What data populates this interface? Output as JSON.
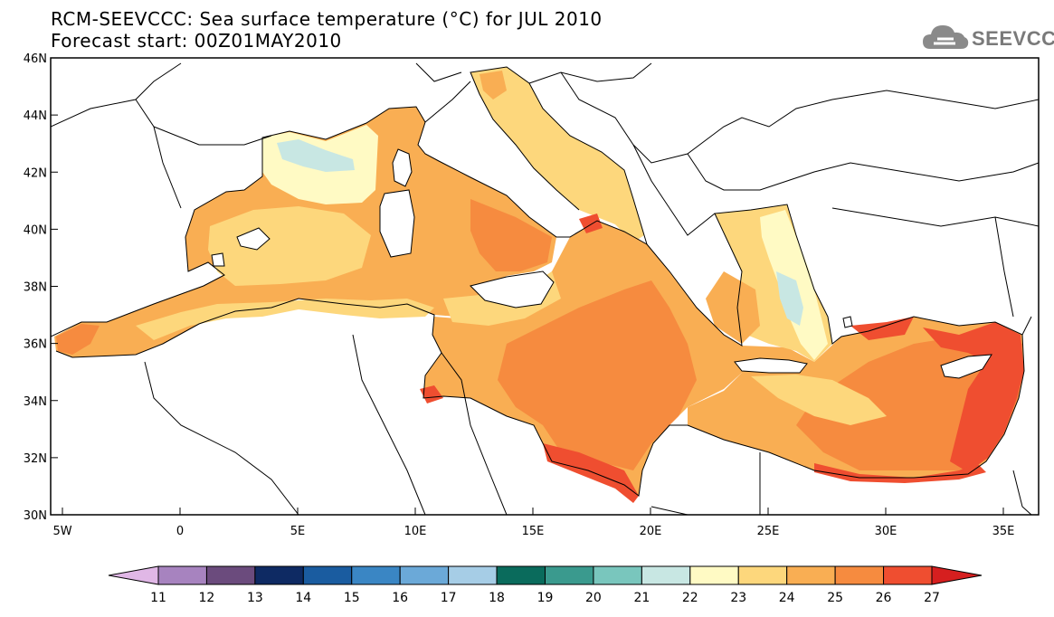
{
  "title_line1": "RCM-SEEVCCC: Sea surface temperature (°C) for JUL 2010",
  "title_line2": "Forecast start: 00Z01MAY2010",
  "logo_text": "SEEVCCC",
  "logo_icon": "cloud-icon",
  "map": {
    "lon_range": [
      -5.5,
      36.5
    ],
    "lat_range": [
      30,
      46
    ],
    "lat_ticks": [
      {
        "v": 46,
        "label": "46N"
      },
      {
        "v": 44,
        "label": "44N"
      },
      {
        "v": 42,
        "label": "42N"
      },
      {
        "v": 40,
        "label": "40N"
      },
      {
        "v": 38,
        "label": "38N"
      },
      {
        "v": 36,
        "label": "36N"
      },
      {
        "v": 34,
        "label": "34N"
      },
      {
        "v": 32,
        "label": "32N"
      },
      {
        "v": 30,
        "label": "30N"
      }
    ],
    "lon_ticks": [
      {
        "v": -5,
        "label": "5W"
      },
      {
        "v": 0,
        "label": "0"
      },
      {
        "v": 5,
        "label": "5E"
      },
      {
        "v": 10,
        "label": "10E"
      },
      {
        "v": 15,
        "label": "15E"
      },
      {
        "v": 20,
        "label": "20E"
      },
      {
        "v": 25,
        "label": "25E"
      },
      {
        "v": 30,
        "label": "30E"
      },
      {
        "v": 35,
        "label": "35E"
      }
    ]
  },
  "colorbar": {
    "levels": [
      "11",
      "12",
      "13",
      "14",
      "15",
      "16",
      "17",
      "18",
      "19",
      "20",
      "21",
      "22",
      "23",
      "24",
      "25",
      "26",
      "27"
    ],
    "colors": [
      "#e0b7e6",
      "#a783bf",
      "#6b4b7d",
      "#0e2a63",
      "#1a5ca0",
      "#3a86c4",
      "#6ba9d8",
      "#a6cde6",
      "#0a6b5c",
      "#3a9a8e",
      "#79c6bd",
      "#c8e7e3",
      "#fffac4",
      "#fdd77c",
      "#f9ae53",
      "#f68b3f",
      "#ef4e30",
      "#d61f1f"
    ]
  },
  "colors": {
    "t22": "#c8e7e3",
    "t23": "#fffac4",
    "t24": "#fdd77c",
    "t25": "#f9ae53",
    "t26": "#f68b3f",
    "t27": "#ef4e30"
  }
}
